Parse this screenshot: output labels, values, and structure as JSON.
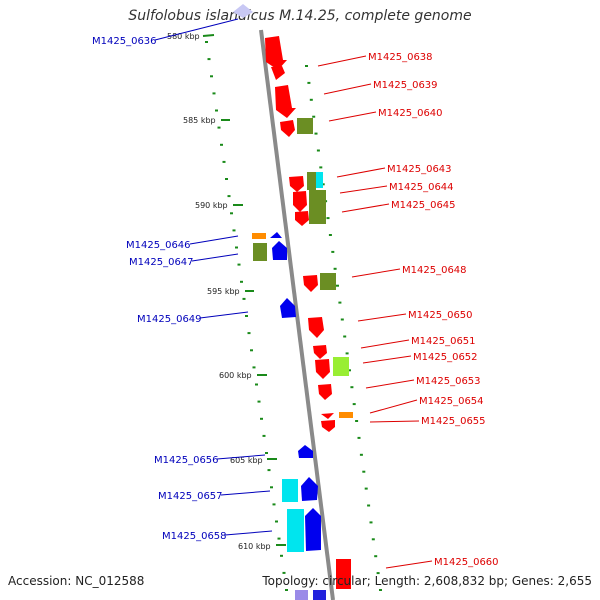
{
  "title": "Sulfolobus islandicus M.14.25, complete genome",
  "footer": {
    "accession": "Accession: NC_012588",
    "stats": "Topology: circular; Length: 2,608,832 bp; Genes: 2,655"
  },
  "colors": {
    "strand_minus_label": "#0000bb",
    "strand_plus_label": "#dd0000",
    "backbone": "#8a8a8a",
    "tick": "#1a8a1a",
    "gene_red": "#ff0000",
    "gene_blue": "#0000ee",
    "gene_olive": "#6b8e23",
    "gene_cyan": "#00e5ee",
    "gene_lime": "#99ee33",
    "gene_orange": "#ff8c00"
  },
  "ruler": [
    {
      "label": "580 kbp"
    },
    {
      "label": "585 kbp"
    },
    {
      "label": "590 kbp"
    },
    {
      "label": "595 kbp"
    },
    {
      "label": "600 kbp"
    },
    {
      "label": "605 kbp"
    },
    {
      "label": "610 kbp"
    }
  ],
  "genes_left": [
    {
      "label": "M1425_0636"
    },
    {
      "label": "M1425_0646"
    },
    {
      "label": "M1425_0647"
    },
    {
      "label": "M1425_0649"
    },
    {
      "label": "M1425_0656"
    },
    {
      "label": "M1425_0657"
    },
    {
      "label": "M1425_0658"
    }
  ],
  "genes_right": [
    {
      "label": "M1425_0638"
    },
    {
      "label": "M1425_0639"
    },
    {
      "label": "M1425_0640"
    },
    {
      "label": "M1425_0643"
    },
    {
      "label": "M1425_0644"
    },
    {
      "label": "M1425_0645"
    },
    {
      "label": "M1425_0648"
    },
    {
      "label": "M1425_0650"
    },
    {
      "label": "M1425_0651"
    },
    {
      "label": "M1425_0652"
    },
    {
      "label": "M1425_0653"
    },
    {
      "label": "M1425_0654"
    },
    {
      "label": "M1425_0655"
    },
    {
      "label": "M1425_0660"
    }
  ]
}
